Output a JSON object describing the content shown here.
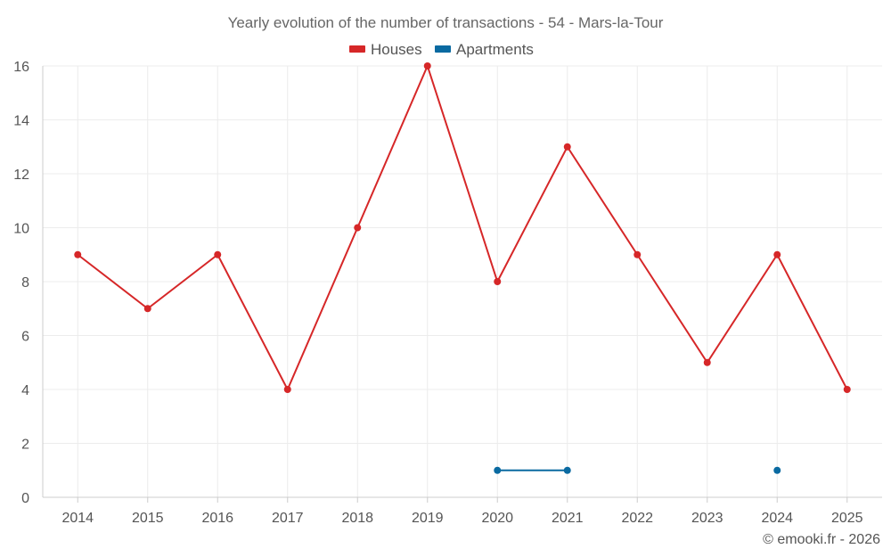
{
  "chart_data": {
    "type": "line",
    "title": "Yearly evolution of the number of transactions - 54 - Mars-la-Tour",
    "categories": [
      "2014",
      "2015",
      "2016",
      "2017",
      "2018",
      "2019",
      "2020",
      "2021",
      "2022",
      "2023",
      "2024",
      "2025"
    ],
    "series": [
      {
        "name": "Houses",
        "color": "#d62728",
        "values": [
          9,
          7,
          9,
          4,
          10,
          16,
          8,
          13,
          9,
          5,
          9,
          4
        ]
      },
      {
        "name": "Apartments",
        "color": "#0a6aa1",
        "values": [
          null,
          null,
          null,
          null,
          null,
          null,
          1,
          1,
          null,
          null,
          1,
          null
        ]
      }
    ],
    "ylim": [
      0,
      16
    ],
    "yticks": [
      0,
      2,
      4,
      6,
      8,
      10,
      12,
      14,
      16
    ],
    "grid": true,
    "legend_position": "top-center",
    "xlabel": "",
    "ylabel": ""
  },
  "credit": "© emooki.fr - 2026"
}
